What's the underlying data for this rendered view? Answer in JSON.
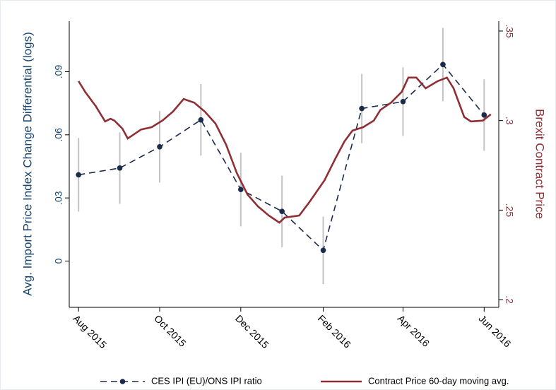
{
  "chart_data": {
    "type": "line",
    "ylabel": "Avg. Import Price Index Change Differential (logs)",
    "y2label": "Brexit Contract Price",
    "ylim": [
      -0.022,
      0.114
    ],
    "yticks": [
      0,
      {
        "value": 0.03,
        "label": ".03"
      },
      {
        "value": 0.06,
        "label": ".06"
      },
      {
        "value": 0.09,
        "label": ".09"
      }
    ],
    "y2lim": [
      0.1957,
      0.3555
    ],
    "y2ticks": [
      {
        "value": 0.2,
        "label": ".2"
      },
      {
        "value": 0.25,
        "label": ".25"
      },
      {
        "value": 0.3,
        "label": ".3"
      },
      {
        "value": 0.35,
        "label": ".35"
      }
    ],
    "xlim": [
      "2015-07-25",
      "2016-06-12"
    ],
    "xticks": [
      {
        "value": "2015-08-01",
        "label": "Aug 2015"
      },
      {
        "value": "2015-10-01",
        "label": "Oct 2015"
      },
      {
        "value": "2015-12-01",
        "label": "Dec 2015"
      },
      {
        "value": "2016-02-01",
        "label": "Feb 2016"
      },
      {
        "value": "2016-04-01",
        "label": "Apr 2016"
      },
      {
        "value": "2016-06-01",
        "label": "Jun 2016"
      }
    ],
    "grid": false,
    "legend": "bottom",
    "series": [
      {
        "name": "CES IPI (EU)/ONS IPI ratio",
        "color": "#1a2b4c",
        "style": "dashed",
        "markers": true,
        "axis": "y",
        "x": [
          "2015-08-01",
          "2015-09-01",
          "2015-10-01",
          "2015-11-01",
          "2015-12-01",
          "2016-01-01",
          "2016-02-01",
          "2016-03-01",
          "2016-04-01",
          "2016-05-01",
          "2016-06-01"
        ],
        "values": [
          0.041,
          0.0442,
          0.0543,
          0.0671,
          0.034,
          0.0236,
          0.0051,
          0.0725,
          0.0758,
          0.0934,
          0.0694
        ],
        "errors": [
          0.0175,
          0.017,
          0.017,
          0.017,
          0.0175,
          0.017,
          0.016,
          0.0165,
          0.0163,
          0.0174,
          0.017
        ],
        "error_color": "#c4c4c4"
      },
      {
        "name": "Contract Price 60-day moving avg.",
        "color": "#8f2f35",
        "style": "solid",
        "markers": false,
        "axis": "y2",
        "x": [
          "2015-08-01",
          "2015-08-06",
          "2015-08-14",
          "2015-08-21",
          "2015-08-25",
          "2015-08-28",
          "2015-09-03",
          "2015-09-07",
          "2015-09-11",
          "2015-09-17",
          "2015-09-25",
          "2015-10-03",
          "2015-10-11",
          "2015-10-19",
          "2015-10-27",
          "2015-11-04",
          "2015-11-12",
          "2015-11-20",
          "2015-11-28",
          "2015-12-06",
          "2015-12-14",
          "2015-12-22",
          "2015-12-30",
          "2016-01-03",
          "2016-01-14",
          "2016-01-22",
          "2016-02-02",
          "2016-02-10",
          "2016-02-17",
          "2016-02-23",
          "2016-03-02",
          "2016-03-10",
          "2016-03-15",
          "2016-03-23",
          "2016-03-31",
          "2016-04-05",
          "2016-04-11",
          "2016-04-18",
          "2016-04-27",
          "2016-05-04",
          "2016-05-09",
          "2016-05-17",
          "2016-05-22",
          "2016-05-31",
          "2016-06-06"
        ],
        "values": [
          0.322,
          0.316,
          0.308,
          0.2995,
          0.301,
          0.3,
          0.2955,
          0.29,
          0.292,
          0.295,
          0.2963,
          0.3,
          0.305,
          0.312,
          0.31,
          0.305,
          0.2983,
          0.2865,
          0.2707,
          0.2588,
          0.252,
          0.247,
          0.243,
          0.2458,
          0.247,
          0.2549,
          0.2667,
          0.2786,
          0.2884,
          0.2944,
          0.2963,
          0.3,
          0.306,
          0.31,
          0.316,
          0.324,
          0.324,
          0.318,
          0.322,
          0.324,
          0.318,
          0.302,
          0.2995,
          0.3,
          0.3035
        ]
      }
    ]
  }
}
